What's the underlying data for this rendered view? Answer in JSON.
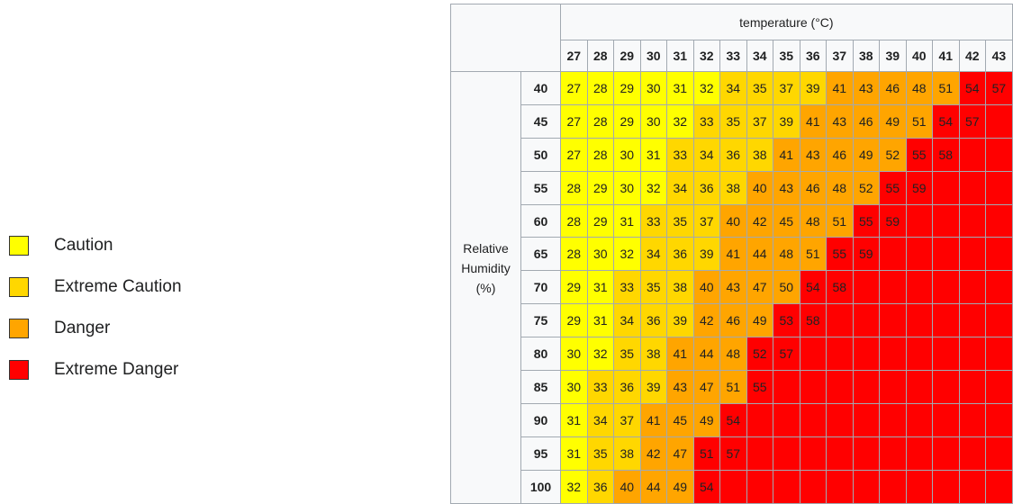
{
  "legend": [
    {
      "label": "Caution",
      "color": "#ffff00"
    },
    {
      "label": "Extreme Caution",
      "color": "#ffd700"
    },
    {
      "label": "Danger",
      "color": "#ffa500"
    },
    {
      "label": "Extreme Danger",
      "color": "#ff0000"
    }
  ],
  "table": {
    "column_group_label": "temperature (°C)",
    "row_group_label": "Relative Humidity (%)",
    "columns": [
      27,
      28,
      29,
      30,
      31,
      32,
      33,
      34,
      35,
      36,
      37,
      38,
      39,
      40,
      41,
      42,
      43
    ],
    "rows": [
      {
        "label": 40,
        "values": [
          27,
          28,
          29,
          30,
          31,
          32,
          34,
          35,
          37,
          39,
          41,
          43,
          46,
          48,
          51,
          54,
          57
        ],
        "levels": [
          0,
          0,
          0,
          0,
          0,
          0,
          1,
          1,
          1,
          1,
          2,
          2,
          2,
          2,
          2,
          3,
          3
        ]
      },
      {
        "label": 45,
        "values": [
          27,
          28,
          29,
          30,
          32,
          33,
          35,
          37,
          39,
          41,
          43,
          46,
          49,
          51,
          54,
          57,
          null
        ],
        "levels": [
          0,
          0,
          0,
          0,
          0,
          1,
          1,
          1,
          1,
          2,
          2,
          2,
          2,
          2,
          3,
          3,
          3
        ]
      },
      {
        "label": 50,
        "values": [
          27,
          28,
          30,
          31,
          33,
          34,
          36,
          38,
          41,
          43,
          46,
          49,
          52,
          55,
          58,
          null,
          null
        ],
        "levels": [
          0,
          0,
          0,
          0,
          1,
          1,
          1,
          1,
          2,
          2,
          2,
          2,
          2,
          3,
          3,
          3,
          3
        ]
      },
      {
        "label": 55,
        "values": [
          28,
          29,
          30,
          32,
          34,
          36,
          38,
          40,
          43,
          46,
          48,
          52,
          55,
          59,
          null,
          null,
          null
        ],
        "levels": [
          0,
          0,
          0,
          0,
          1,
          1,
          1,
          2,
          2,
          2,
          2,
          2,
          3,
          3,
          3,
          3,
          3
        ]
      },
      {
        "label": 60,
        "values": [
          28,
          29,
          31,
          33,
          35,
          37,
          40,
          42,
          45,
          48,
          51,
          55,
          59,
          null,
          null,
          null,
          null
        ],
        "levels": [
          0,
          0,
          0,
          1,
          1,
          1,
          2,
          2,
          2,
          2,
          2,
          3,
          3,
          3,
          3,
          3,
          3
        ]
      },
      {
        "label": 65,
        "values": [
          28,
          30,
          32,
          34,
          36,
          39,
          41,
          44,
          48,
          51,
          55,
          59,
          null,
          null,
          null,
          null,
          null
        ],
        "levels": [
          0,
          0,
          0,
          1,
          1,
          1,
          2,
          2,
          2,
          2,
          3,
          3,
          3,
          3,
          3,
          3,
          3
        ]
      },
      {
        "label": 70,
        "values": [
          29,
          31,
          33,
          35,
          38,
          40,
          43,
          47,
          50,
          54,
          58,
          null,
          null,
          null,
          null,
          null,
          null
        ],
        "levels": [
          0,
          0,
          1,
          1,
          1,
          2,
          2,
          2,
          2,
          3,
          3,
          3,
          3,
          3,
          3,
          3,
          3
        ]
      },
      {
        "label": 75,
        "values": [
          29,
          31,
          34,
          36,
          39,
          42,
          46,
          49,
          53,
          58,
          null,
          null,
          null,
          null,
          null,
          null,
          null
        ],
        "levels": [
          0,
          0,
          1,
          1,
          1,
          2,
          2,
          2,
          3,
          3,
          3,
          3,
          3,
          3,
          3,
          3,
          3
        ]
      },
      {
        "label": 80,
        "values": [
          30,
          32,
          35,
          38,
          41,
          44,
          48,
          52,
          57,
          null,
          null,
          null,
          null,
          null,
          null,
          null,
          null
        ],
        "levels": [
          0,
          0,
          1,
          1,
          2,
          2,
          2,
          3,
          3,
          3,
          3,
          3,
          3,
          3,
          3,
          3,
          3
        ]
      },
      {
        "label": 85,
        "values": [
          30,
          33,
          36,
          39,
          43,
          47,
          51,
          55,
          null,
          null,
          null,
          null,
          null,
          null,
          null,
          null,
          null
        ],
        "levels": [
          0,
          1,
          1,
          1,
          2,
          2,
          2,
          3,
          3,
          3,
          3,
          3,
          3,
          3,
          3,
          3,
          3
        ]
      },
      {
        "label": 90,
        "values": [
          31,
          34,
          37,
          41,
          45,
          49,
          54,
          null,
          null,
          null,
          null,
          null,
          null,
          null,
          null,
          null,
          null
        ],
        "levels": [
          0,
          1,
          1,
          2,
          2,
          2,
          3,
          3,
          3,
          3,
          3,
          3,
          3,
          3,
          3,
          3,
          3
        ]
      },
      {
        "label": 95,
        "values": [
          31,
          35,
          38,
          42,
          47,
          51,
          57,
          null,
          null,
          null,
          null,
          null,
          null,
          null,
          null,
          null,
          null
        ],
        "levels": [
          0,
          1,
          1,
          2,
          2,
          3,
          3,
          3,
          3,
          3,
          3,
          3,
          3,
          3,
          3,
          3,
          3
        ]
      },
      {
        "label": 100,
        "values": [
          32,
          36,
          40,
          44,
          49,
          54,
          null,
          null,
          null,
          null,
          null,
          null,
          null,
          null,
          null,
          null,
          null
        ],
        "levels": [
          0,
          1,
          2,
          2,
          2,
          3,
          3,
          3,
          3,
          3,
          3,
          3,
          3,
          3,
          3,
          3,
          3
        ]
      }
    ]
  }
}
